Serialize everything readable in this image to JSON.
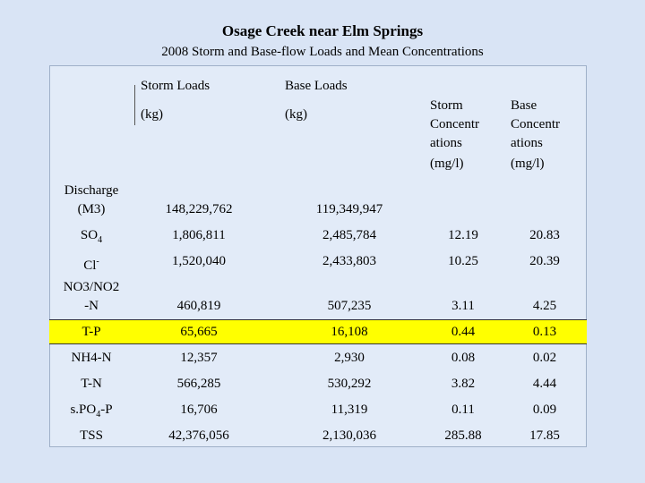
{
  "header": {
    "title": "Osage Creek near Elm Springs",
    "subtitle": "2008 Storm and Base-flow Loads and Mean Concentrations"
  },
  "table": {
    "columns": [
      [
        "Storm Loads",
        "(kg)"
      ],
      [
        "Base Loads",
        "(kg)"
      ],
      [
        "Storm",
        "Concentr",
        "ations",
        "(mg/l)"
      ],
      [
        "Base",
        "Concentr",
        "ations",
        "(mg/l)"
      ]
    ],
    "highlight_color": "#ffff00",
    "rows": [
      {
        "label": [
          {
            "text": "Discharge"
          },
          {
            "text": "(M3)",
            "newline": true
          }
        ],
        "cells": [
          "148,229,762",
          "119,349,947",
          null,
          null
        ]
      },
      {
        "label": [
          {
            "text": "SO"
          },
          {
            "text": "4",
            "sub": true
          }
        ],
        "cells": [
          "1,806,811",
          "2,485,784",
          "12.19",
          "20.83"
        ]
      },
      {
        "label": [
          {
            "text": "Cl"
          },
          {
            "text": "-",
            "sup": true
          }
        ],
        "cells": [
          "1,520,040",
          "2,433,803",
          "10.25",
          "20.39"
        ]
      },
      {
        "label": [
          {
            "text": "NO3/NO2"
          },
          {
            "text": "-N",
            "newline": true
          }
        ],
        "cells": [
          "460,819",
          "507,235",
          "3.11",
          "4.25"
        ]
      },
      {
        "label": [
          {
            "text": "T-P"
          }
        ],
        "cells": [
          "65,665",
          "16,108",
          "0.44",
          "0.13"
        ],
        "highlight": true
      },
      {
        "label": [
          {
            "text": "NH4-N"
          }
        ],
        "cells": [
          "12,357",
          "2,930",
          "0.08",
          "0.02"
        ]
      },
      {
        "label": [
          {
            "text": "T-N"
          }
        ],
        "cells": [
          "566,285",
          "530,292",
          "3.82",
          "4.44"
        ]
      },
      {
        "label": [
          {
            "text": "s.PO"
          },
          {
            "text": "4",
            "sub": true
          },
          {
            "text": "-P"
          }
        ],
        "cells": [
          "16,706",
          "11,319",
          "0.11",
          "0.09"
        ]
      },
      {
        "label": [
          {
            "text": "TSS"
          }
        ],
        "cells": [
          "42,376,056",
          "2,130,036",
          "285.88",
          "17.85"
        ]
      }
    ]
  }
}
